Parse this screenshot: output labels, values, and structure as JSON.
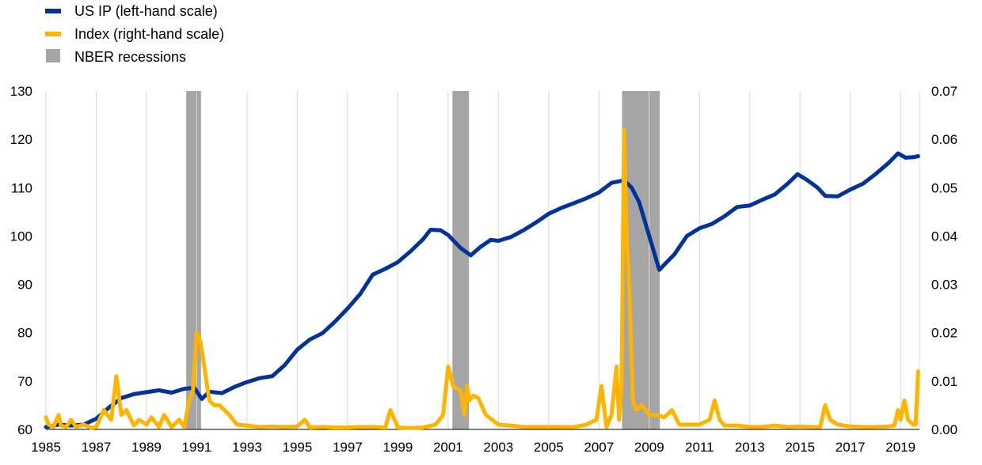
{
  "chart_data": {
    "type": "line",
    "title": "",
    "xlabel": "",
    "ylabel": "",
    "x_range": [
      1985.0,
      2019.75
    ],
    "x_ticks": [
      "1985",
      "1987",
      "1989",
      "1991",
      "1993",
      "1995",
      "1997",
      "1999",
      "2001",
      "2003",
      "2005",
      "2007",
      "2009",
      "2011",
      "2013",
      "2015",
      "2017",
      "2019"
    ],
    "y_left": {
      "range": [
        60,
        130
      ],
      "ticks": [
        "60",
        "70",
        "80",
        "90",
        "100",
        "110",
        "120",
        "130"
      ]
    },
    "y_right": {
      "range": [
        0,
        0.07
      ],
      "ticks": [
        "0.00",
        "0.01",
        "0.02",
        "0.03",
        "0.04",
        "0.05",
        "0.06",
        "0.07"
      ]
    },
    "grid": "vertical",
    "legend": {
      "placement": "top-left",
      "items": [
        {
          "label": "US IP (left-hand scale)",
          "color": "#003299",
          "kind": "line"
        },
        {
          "label": "Index (right-hand scale)",
          "color": "#FFB400",
          "kind": "line"
        },
        {
          "label": "NBER recessions",
          "color": "#A5A5A5",
          "kind": "box"
        }
      ]
    },
    "recessions": [
      {
        "start": 1990.58,
        "end": 1991.17
      },
      {
        "start": 2001.17,
        "end": 2001.83
      },
      {
        "start": 2007.92,
        "end": 2009.42
      }
    ],
    "series": [
      {
        "name": "US IP (left-hand scale)",
        "axis": "left",
        "color": "#003299",
        "x": [
          1985.0,
          1985.5,
          1986.0,
          1986.5,
          1987.0,
          1987.5,
          1988.0,
          1988.5,
          1989.0,
          1989.5,
          1990.0,
          1990.5,
          1990.9,
          1991.2,
          1991.5,
          1992.0,
          1992.5,
          1993.0,
          1993.5,
          1994.0,
          1994.5,
          1995.0,
          1995.5,
          1996.0,
          1996.5,
          1997.0,
          1997.5,
          1998.0,
          1998.5,
          1999.0,
          1999.5,
          2000.0,
          2000.3,
          2000.7,
          2001.0,
          2001.5,
          2001.9,
          2002.3,
          2002.7,
          2003.0,
          2003.5,
          2004.0,
          2004.5,
          2005.0,
          2005.5,
          2006.0,
          2006.5,
          2007.0,
          2007.5,
          2008.0,
          2008.3,
          2008.6,
          2009.0,
          2009.4,
          2009.7,
          2010.0,
          2010.5,
          2011.0,
          2011.5,
          2012.0,
          2012.5,
          2013.0,
          2013.5,
          2014.0,
          2014.5,
          2014.9,
          2015.3,
          2015.7,
          2016.0,
          2016.5,
          2017.0,
          2017.5,
          2018.0,
          2018.5,
          2018.9,
          2019.2,
          2019.5,
          2019.7
        ],
        "y": [
          60.5,
          61.0,
          60.8,
          61.0,
          62.2,
          64.5,
          66.5,
          67.3,
          67.7,
          68.1,
          67.6,
          68.4,
          68.6,
          66.3,
          67.8,
          67.5,
          68.8,
          69.8,
          70.6,
          71.0,
          73.3,
          76.5,
          78.6,
          79.9,
          82.3,
          85.0,
          88.0,
          92.0,
          93.2,
          94.6,
          96.8,
          99.3,
          101.3,
          101.2,
          100.2,
          97.5,
          96.0,
          97.8,
          99.2,
          99.0,
          99.8,
          101.2,
          102.8,
          104.6,
          105.8,
          106.8,
          107.8,
          109.0,
          111.0,
          111.5,
          110.0,
          107.0,
          100.0,
          93.0,
          94.6,
          96.2,
          100.0,
          101.6,
          102.5,
          104.1,
          106.0,
          106.3,
          107.5,
          108.6,
          110.8,
          112.8,
          111.5,
          110.0,
          108.3,
          108.2,
          109.6,
          110.8,
          112.8,
          115.0,
          117.1,
          116.2,
          116.3,
          116.5
        ]
      },
      {
        "name": "Index (right-hand scale)",
        "axis": "right",
        "color": "#FFB400",
        "x": [
          1985.0,
          1985.1,
          1985.3,
          1985.5,
          1985.6,
          1985.8,
          1986.0,
          1986.2,
          1986.5,
          1986.8,
          1987.0,
          1987.3,
          1987.6,
          1987.8,
          1988.0,
          1988.2,
          1988.5,
          1988.7,
          1989.0,
          1989.2,
          1989.5,
          1989.7,
          1990.0,
          1990.3,
          1990.5,
          1990.7,
          1990.85,
          1991.0,
          1991.15,
          1991.3,
          1991.5,
          1991.7,
          1991.9,
          1992.1,
          1992.3,
          1992.6,
          1993.0,
          1993.5,
          1994.0,
          1994.5,
          1995.0,
          1995.3,
          1995.5,
          1996.0,
          1996.5,
          1997.0,
          1997.5,
          1998.0,
          1998.5,
          1998.7,
          1999.0,
          1999.5,
          2000.0,
          2000.5,
          2000.8,
          2001.0,
          2001.2,
          2001.5,
          2001.65,
          2001.75,
          2001.85,
          2002.0,
          2002.2,
          2002.5,
          2003.0,
          2003.5,
          2004.0,
          2004.5,
          2005.0,
          2005.5,
          2006.0,
          2006.5,
          2006.9,
          2007.1,
          2007.3,
          2007.5,
          2007.7,
          2007.8,
          2007.9,
          2008.0,
          2008.1,
          2008.2,
          2008.35,
          2008.5,
          2008.7,
          2009.0,
          2009.3,
          2009.6,
          2009.9,
          2010.2,
          2010.5,
          2011.0,
          2011.4,
          2011.6,
          2011.8,
          2012.0,
          2012.5,
          2013.0,
          2013.5,
          2014.0,
          2014.5,
          2015.0,
          2015.5,
          2015.8,
          2016.0,
          2016.2,
          2016.5,
          2017.0,
          2017.5,
          2018.0,
          2018.5,
          2018.75,
          2018.9,
          2019.0,
          2019.15,
          2019.3,
          2019.5,
          2019.6,
          2019.7
        ],
        "y": [
          0.0025,
          0.001,
          0.0005,
          0.003,
          0.0008,
          0.0005,
          0.002,
          0.0005,
          0.001,
          0.0003,
          0.0005,
          0.004,
          0.002,
          0.011,
          0.003,
          0.004,
          0.0008,
          0.002,
          0.001,
          0.0025,
          0.0005,
          0.003,
          0.0005,
          0.002,
          0.0005,
          0.006,
          0.008,
          0.02,
          0.018,
          0.013,
          0.006,
          0.005,
          0.005,
          0.004,
          0.003,
          0.001,
          0.0008,
          0.0005,
          0.0006,
          0.0005,
          0.0006,
          0.002,
          0.0004,
          0.0005,
          0.0004,
          0.0004,
          0.0005,
          0.0005,
          0.0004,
          0.004,
          0.0004,
          0.0003,
          0.0004,
          0.001,
          0.003,
          0.013,
          0.009,
          0.008,
          0.003,
          0.009,
          0.006,
          0.007,
          0.0065,
          0.003,
          0.001,
          0.0008,
          0.0005,
          0.0005,
          0.0005,
          0.0005,
          0.0005,
          0.001,
          0.002,
          0.009,
          0.0005,
          0.003,
          0.013,
          0.002,
          0.009,
          0.062,
          0.04,
          0.03,
          0.006,
          0.004,
          0.005,
          0.003,
          0.003,
          0.0025,
          0.004,
          0.001,
          0.001,
          0.001,
          0.002,
          0.006,
          0.002,
          0.0008,
          0.0008,
          0.0005,
          0.0005,
          0.0008,
          0.0005,
          0.0006,
          0.0005,
          0.0005,
          0.005,
          0.002,
          0.001,
          0.0006,
          0.0005,
          0.0005,
          0.0006,
          0.0008,
          0.004,
          0.002,
          0.006,
          0.002,
          0.001,
          0.001,
          0.012
        ]
      }
    ]
  }
}
